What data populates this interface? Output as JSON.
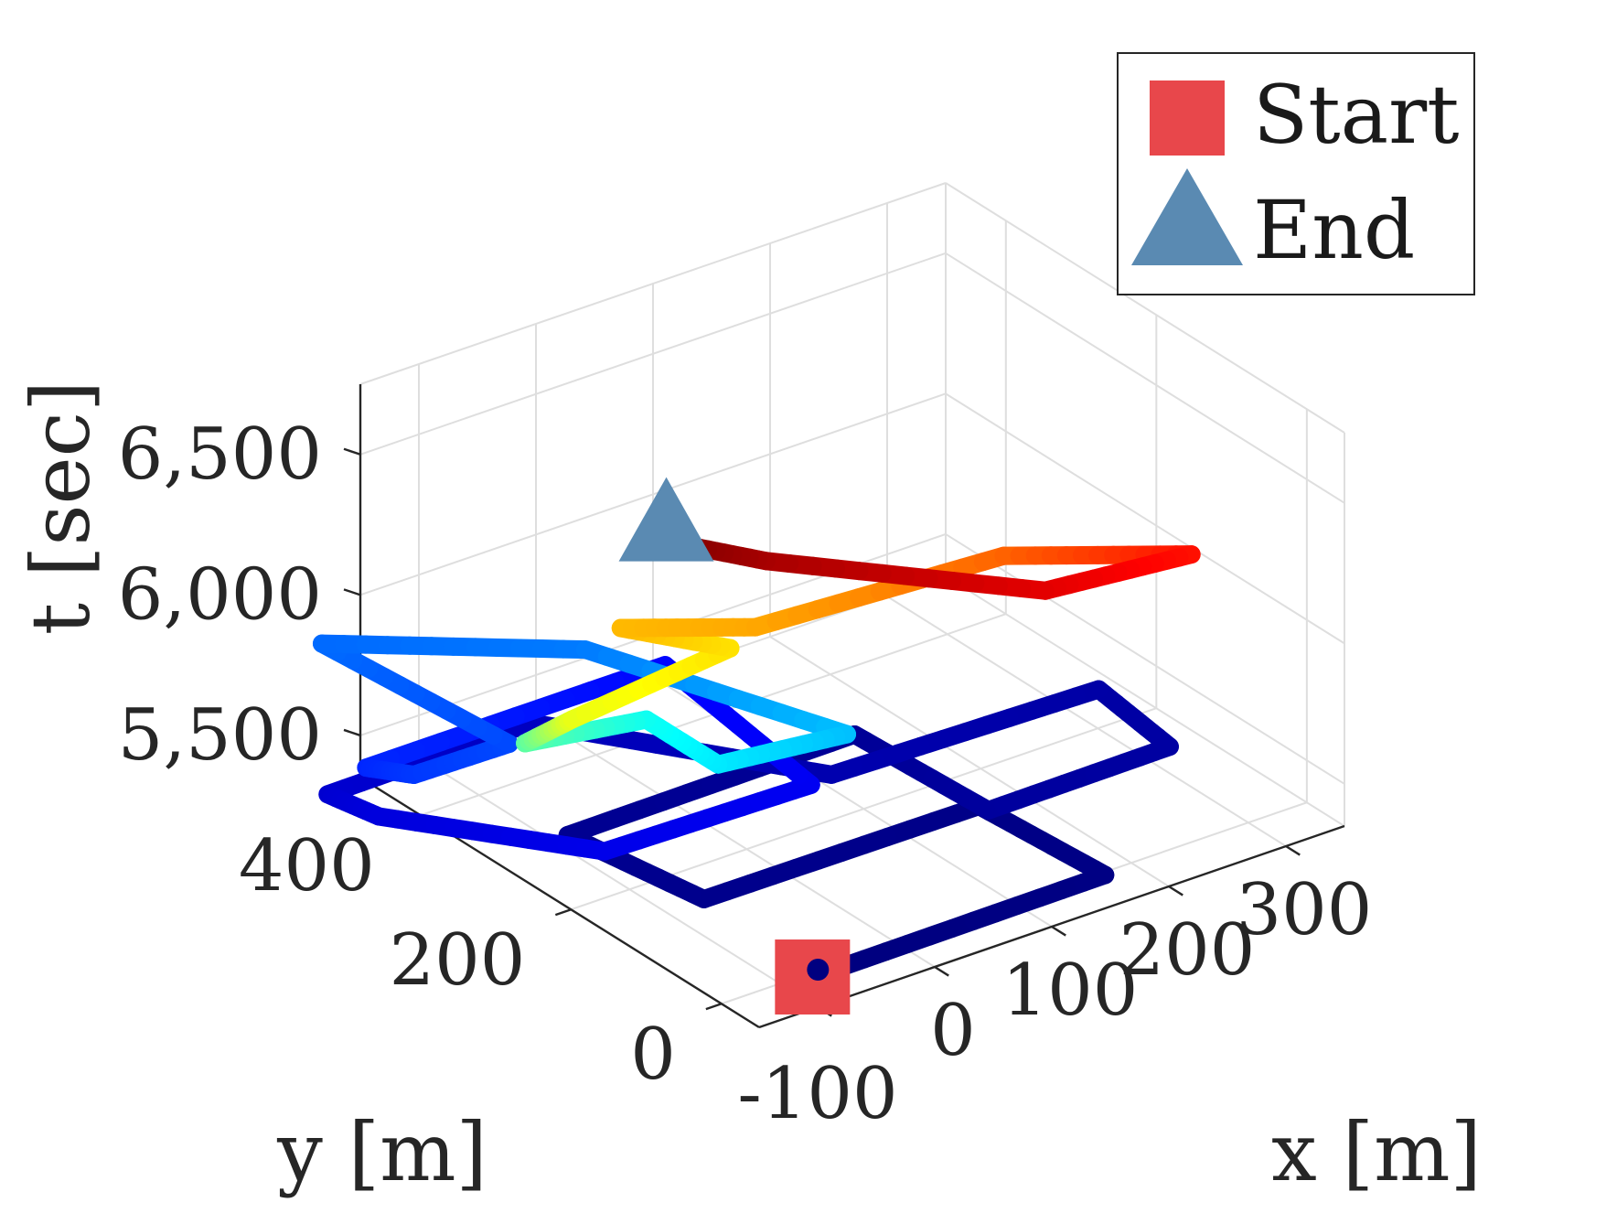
{
  "chart_data": {
    "type": "line",
    "projection": "3d",
    "xlabel": "x [m]",
    "ylabel": "y [m]",
    "zlabel": "t [sec]",
    "xlim": [
      -150,
      350
    ],
    "ylim": [
      -50,
      480
    ],
    "zlim": [
      5350,
      6750
    ],
    "xticks": [
      -100,
      0,
      100,
      200,
      300
    ],
    "xtick_labels": [
      "-100",
      "0",
      "100",
      "200",
      "300"
    ],
    "yticks": [
      0,
      200,
      400
    ],
    "ytick_labels": [
      "0",
      "200",
      "400"
    ],
    "zticks": [
      5500,
      6000,
      6500
    ],
    "ztick_labels": [
      "5,500",
      "6,000",
      "6,500"
    ],
    "grid": true,
    "colormap": "jet",
    "color_encodes": "t",
    "legend": {
      "location": "top-right",
      "entries": [
        {
          "label": "Start",
          "marker": "square",
          "color": "#e8474b"
        },
        {
          "label": "End",
          "marker": "triangle",
          "color": "#5a8ab2"
        }
      ]
    },
    "trajectory": [
      {
        "x": -80,
        "y": -12,
        "t": 5365
      },
      {
        "x": -55,
        "y": -12,
        "t": 5365
      },
      {
        "x": 170,
        "y": -12,
        "t": 5370
      },
      {
        "x": 160,
        "y": 140,
        "t": 5375
      },
      {
        "x": -75,
        "y": 140,
        "t": 5380
      },
      {
        "x": -95,
        "y": 290,
        "t": 5385
      },
      {
        "x": 150,
        "y": 290,
        "t": 5392
      },
      {
        "x": 155,
        "y": 120,
        "t": 5400
      },
      {
        "x": 310,
        "y": 120,
        "t": 5405
      },
      {
        "x": 320,
        "y": 230,
        "t": 5410
      },
      {
        "x": 95,
        "y": 235,
        "t": 5420
      },
      {
        "x": -30,
        "y": 440,
        "t": 5440
      },
      {
        "x": -210,
        "y": 430,
        "t": 5460
      },
      {
        "x": -205,
        "y": 370,
        "t": 5475
      },
      {
        "x": -115,
        "y": 210,
        "t": 5490
      },
      {
        "x": 55,
        "y": 200,
        "t": 5500
      },
      {
        "x": 75,
        "y": 425,
        "t": 5520
      },
      {
        "x": -190,
        "y": 410,
        "t": 5560
      },
      {
        "x": -175,
        "y": 370,
        "t": 5580
      },
      {
        "x": -100,
        "y": 360,
        "t": 5600
      },
      {
        "x": -125,
        "y": 570,
        "t": 5640
      },
      {
        "x": 10,
        "y": 430,
        "t": 5660
      },
      {
        "x": 60,
        "y": 160,
        "t": 5740
      },
      {
        "x": -50,
        "y": 160,
        "t": 5790
      },
      {
        "x": -60,
        "y": 240,
        "t": 5830
      },
      {
        "x": -170,
        "y": 230,
        "t": 5920
      },
      {
        "x": -165,
        "y": 175,
        "t": 6090
      },
      {
        "x": -30,
        "y": 175,
        "t": 6150
      },
      {
        "x": -85,
        "y": 235,
        "t": 6200
      },
      {
        "x": -15,
        "y": 165,
        "t": 6220
      },
      {
        "x": 165,
        "y": 115,
        "t": 6300
      },
      {
        "x": 245,
        "y": -10,
        "t": 6400
      },
      {
        "x": 120,
        "y": -10,
        "t": 6450
      },
      {
        "x": -25,
        "y": 135,
        "t": 6520
      },
      {
        "x": -75,
        "y": 190,
        "t": 6570
      }
    ],
    "start": {
      "x": -80,
      "y": -12,
      "t": 5365
    },
    "end": {
      "x": -75,
      "y": 190,
      "t": 6570
    }
  }
}
